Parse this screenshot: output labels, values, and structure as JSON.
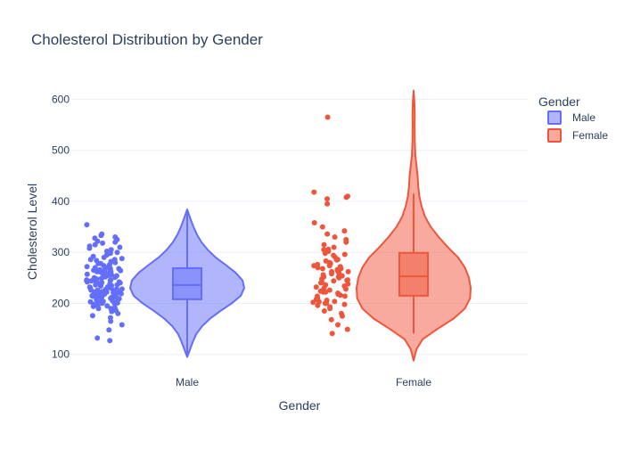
{
  "chart_data": {
    "type": "violin",
    "title": "Cholesterol Distribution by Gender",
    "xlabel": "Gender",
    "ylabel": "Cholesterol Level",
    "categories": [
      "Male",
      "Female"
    ],
    "ylim": [
      75,
      620
    ],
    "yticks": [
      100,
      200,
      300,
      400,
      500,
      600
    ],
    "grid": true,
    "legend": {
      "title": "Gender",
      "position": "top-right",
      "items": [
        {
          "label": "Male",
          "color": "#636efa"
        },
        {
          "label": "Female",
          "color": "#ef553b"
        }
      ]
    },
    "series": [
      {
        "name": "Male",
        "color": "#636efa",
        "box": {
          "min": 95,
          "q1": 208,
          "median": 236,
          "q3": 269,
          "max": 384
        },
        "violin_density": [
          [
            95,
            0.0
          ],
          [
            110,
            0.05
          ],
          [
            125,
            0.1
          ],
          [
            140,
            0.16
          ],
          [
            155,
            0.26
          ],
          [
            170,
            0.4
          ],
          [
            185,
            0.58
          ],
          [
            200,
            0.78
          ],
          [
            215,
            0.94
          ],
          [
            230,
            1.0
          ],
          [
            245,
            0.97
          ],
          [
            260,
            0.85
          ],
          [
            275,
            0.68
          ],
          [
            290,
            0.5
          ],
          [
            305,
            0.36
          ],
          [
            320,
            0.25
          ],
          [
            335,
            0.17
          ],
          [
            350,
            0.11
          ],
          [
            365,
            0.06
          ],
          [
            384,
            0.0
          ]
        ],
        "points": [
          127,
          132,
          148,
          158,
          165,
          172,
          176,
          180,
          184,
          186,
          188,
          190,
          192,
          194,
          195,
          197,
          198,
          200,
          201,
          202,
          203,
          204,
          205,
          206,
          207,
          208,
          209,
          210,
          211,
          212,
          213,
          214,
          215,
          216,
          217,
          218,
          219,
          220,
          221,
          222,
          223,
          224,
          225,
          226,
          227,
          228,
          229,
          230,
          231,
          232,
          233,
          234,
          235,
          236,
          237,
          238,
          239,
          240,
          241,
          242,
          243,
          244,
          245,
          246,
          247,
          248,
          249,
          250,
          251,
          252,
          253,
          254,
          255,
          256,
          257,
          258,
          259,
          260,
          261,
          262,
          263,
          264,
          265,
          266,
          268,
          270,
          272,
          274,
          276,
          278,
          280,
          282,
          284,
          286,
          288,
          290,
          292,
          295,
          298,
          300,
          302,
          305,
          308,
          310,
          312,
          315,
          318,
          320,
          322,
          325,
          328,
          330,
          333,
          336,
          354,
          205,
          212,
          218,
          224,
          228,
          232,
          236,
          240,
          244,
          248,
          252,
          256,
          262,
          268,
          274,
          238,
          242,
          246,
          226,
          222,
          214,
          210,
          200,
          196,
          190,
          262,
          266,
          270,
          278,
          286
        ]
      },
      {
        "name": "Female",
        "color": "#ef553b",
        "box": {
          "min": 141,
          "q1": 215,
          "median": 253,
          "q3": 299,
          "max": 415
        },
        "violin_density": [
          [
            88,
            0.0
          ],
          [
            110,
            0.05
          ],
          [
            130,
            0.16
          ],
          [
            150,
            0.42
          ],
          [
            170,
            0.7
          ],
          [
            190,
            0.9
          ],
          [
            210,
            0.99
          ],
          [
            230,
            1.0
          ],
          [
            250,
            0.97
          ],
          [
            270,
            0.9
          ],
          [
            290,
            0.78
          ],
          [
            310,
            0.6
          ],
          [
            330,
            0.44
          ],
          [
            350,
            0.3
          ],
          [
            370,
            0.2
          ],
          [
            390,
            0.14
          ],
          [
            410,
            0.1
          ],
          [
            430,
            0.08
          ],
          [
            450,
            0.07
          ],
          [
            470,
            0.05
          ],
          [
            490,
            0.03
          ],
          [
            520,
            0.02
          ],
          [
            550,
            0.018
          ],
          [
            570,
            0.02
          ],
          [
            590,
            0.015
          ],
          [
            605,
            0.008
          ],
          [
            617,
            0.0
          ]
        ],
        "points": [
          141,
          149,
          158,
          168,
          175,
          180,
          185,
          190,
          193,
          196,
          198,
          200,
          202,
          204,
          206,
          208,
          210,
          212,
          214,
          216,
          218,
          220,
          222,
          224,
          226,
          228,
          230,
          232,
          234,
          236,
          238,
          240,
          242,
          244,
          246,
          248,
          250,
          252,
          254,
          256,
          258,
          260,
          262,
          264,
          266,
          268,
          270,
          272,
          274,
          276,
          278,
          280,
          283,
          286,
          290,
          294,
          298,
          302,
          306,
          310,
          315,
          320,
          325,
          330,
          336,
          342,
          350,
          358,
          395,
          405,
          408,
          410,
          418,
          565,
          200,
          203,
          214,
          222,
          245,
          252,
          262,
          268,
          274,
          285,
          296,
          305
        ]
      }
    ]
  }
}
